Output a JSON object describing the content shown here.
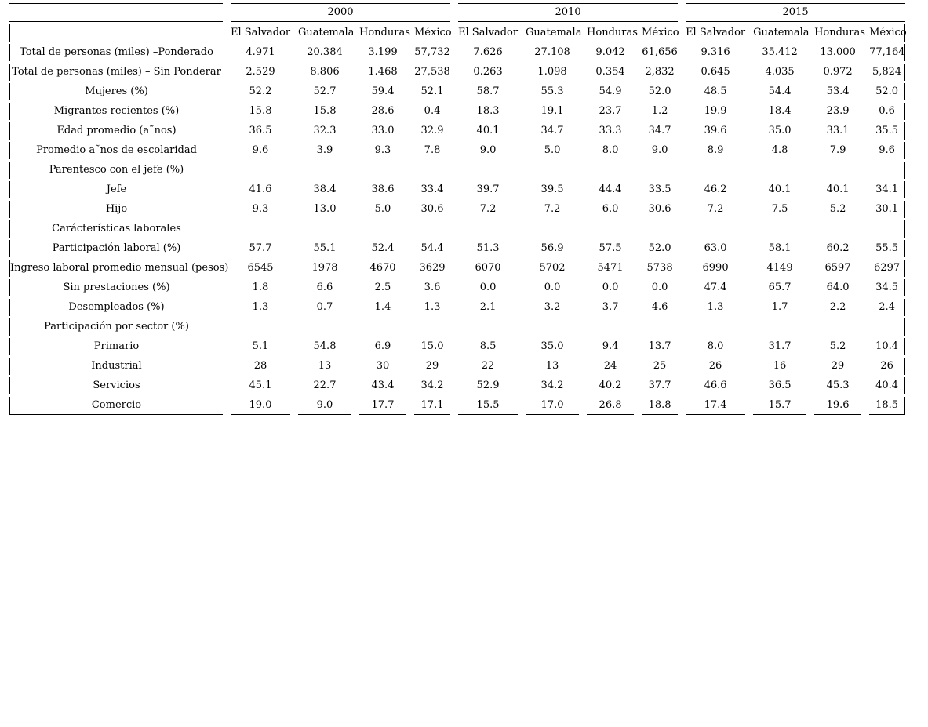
{
  "page": {
    "background": "#ffffff",
    "text_color": "#000000",
    "rule_color": "#000000"
  },
  "table": {
    "years": [
      "2000",
      "2010",
      "2015"
    ],
    "countries": [
      "El Salvador",
      "Guatemala",
      "Honduras",
      "México"
    ],
    "rows": [
      {
        "label": "Total de personas (miles) –Ponderado",
        "section": false,
        "values": [
          "4.971",
          "20.384",
          "3.199",
          "57,732",
          "7.626",
          "27.108",
          "9.042",
          "61,656",
          "9.316",
          "35.412",
          "13.000",
          "77,164"
        ]
      },
      {
        "label": "Total de personas (miles) – Sin Ponderar",
        "section": false,
        "values": [
          "2.529",
          "8.806",
          "1.468",
          "27,538",
          "0.263",
          "1.098",
          "0.354",
          "2,832",
          "0.645",
          "4.035",
          "0.972",
          "5,824"
        ]
      },
      {
        "label": "Mujeres (%)",
        "section": false,
        "values": [
          "52.2",
          "52.7",
          "59.4",
          "52.1",
          "58.7",
          "55.3",
          "54.9",
          "52.0",
          "48.5",
          "54.4",
          "53.4",
          "52.0"
        ]
      },
      {
        "label": "Migrantes recientes (%)",
        "section": false,
        "values": [
          "15.8",
          "15.8",
          "28.6",
          "0.4",
          "18.3",
          "19.1",
          "23.7",
          "1.2",
          "19.9",
          "18.4",
          "23.9",
          "0.6"
        ]
      },
      {
        "label": "Edad promedio (a˜nos)",
        "section": false,
        "values": [
          "36.5",
          "32.3",
          "33.0",
          "32.9",
          "40.1",
          "34.7",
          "33.3",
          "34.7",
          "39.6",
          "35.0",
          "33.1",
          "35.5"
        ]
      },
      {
        "label": "Promedio a˜nos de escolaridad",
        "section": false,
        "values": [
          "9.6",
          "3.9",
          "9.3",
          "7.8",
          "9.0",
          "5.0",
          "8.0",
          "9.0",
          "8.9",
          "4.8",
          "7.9",
          "9.6"
        ]
      },
      {
        "label": "Parentesco con el jefe (%)",
        "section": true,
        "values": []
      },
      {
        "label": "Jefe",
        "section": false,
        "values": [
          "41.6",
          "38.4",
          "38.6",
          "33.4",
          "39.7",
          "39.5",
          "44.4",
          "33.5",
          "46.2",
          "40.1",
          "40.1",
          "34.1"
        ]
      },
      {
        "label": "Hijo",
        "section": false,
        "values": [
          "9.3",
          "13.0",
          "5.0",
          "30.6",
          "7.2",
          "7.2",
          "6.0",
          "30.6",
          "7.2",
          "7.5",
          "5.2",
          "30.1"
        ]
      },
      {
        "label": "Carácterísticas laborales",
        "section": true,
        "values": []
      },
      {
        "label": "Participación laboral (%)",
        "section": false,
        "values": [
          "57.7",
          "55.1",
          "52.4",
          "54.4",
          "51.3",
          "56.9",
          "57.5",
          "52.0",
          "63.0",
          "58.1",
          "60.2",
          "55.5"
        ]
      },
      {
        "label": "Ingreso laboral promedio mensual (pesos)",
        "section": false,
        "values": [
          "6545",
          "1978",
          "4670",
          "3629",
          "6070",
          "5702",
          "5471",
          "5738",
          "6990",
          "4149",
          "6597",
          "6297"
        ]
      },
      {
        "label": "Sin prestaciones (%)",
        "section": false,
        "values": [
          "1.8",
          "6.6",
          "2.5",
          "3.6",
          "0.0",
          "0.0",
          "0.0",
          "0.0",
          "47.4",
          "65.7",
          "64.0",
          "34.5"
        ]
      },
      {
        "label": "Desempleados (%)",
        "section": false,
        "values": [
          "1.3",
          "0.7",
          "1.4",
          "1.3",
          "2.1",
          "3.2",
          "3.7",
          "4.6",
          "1.3",
          "1.7",
          "2.2",
          "2.4"
        ]
      },
      {
        "label": "Participación por sector (%)",
        "section": true,
        "values": []
      },
      {
        "label": "Primario",
        "section": false,
        "values": [
          "5.1",
          "54.8",
          "6.9",
          "15.0",
          "8.5",
          "35.0",
          "9.4",
          "13.7",
          "8.0",
          "31.7",
          "5.2",
          "10.4"
        ]
      },
      {
        "label": "Industrial",
        "section": false,
        "values": [
          "28",
          "13",
          "30",
          "29",
          "22",
          "13",
          "24",
          "25",
          "26",
          "16",
          "29",
          "26"
        ]
      },
      {
        "label": "Servicios",
        "section": false,
        "values": [
          "45.1",
          "22.7",
          "43.4",
          "34.2",
          "52.9",
          "34.2",
          "40.2",
          "37.7",
          "46.6",
          "36.5",
          "45.3",
          "40.4"
        ]
      },
      {
        "label": "Comercio",
        "section": false,
        "values": [
          "19.0",
          "9.0",
          "17.7",
          "17.1",
          "15.5",
          "17.0",
          "26.8",
          "18.8",
          "17.4",
          "15.7",
          "19.6",
          "18.5"
        ]
      }
    ]
  }
}
